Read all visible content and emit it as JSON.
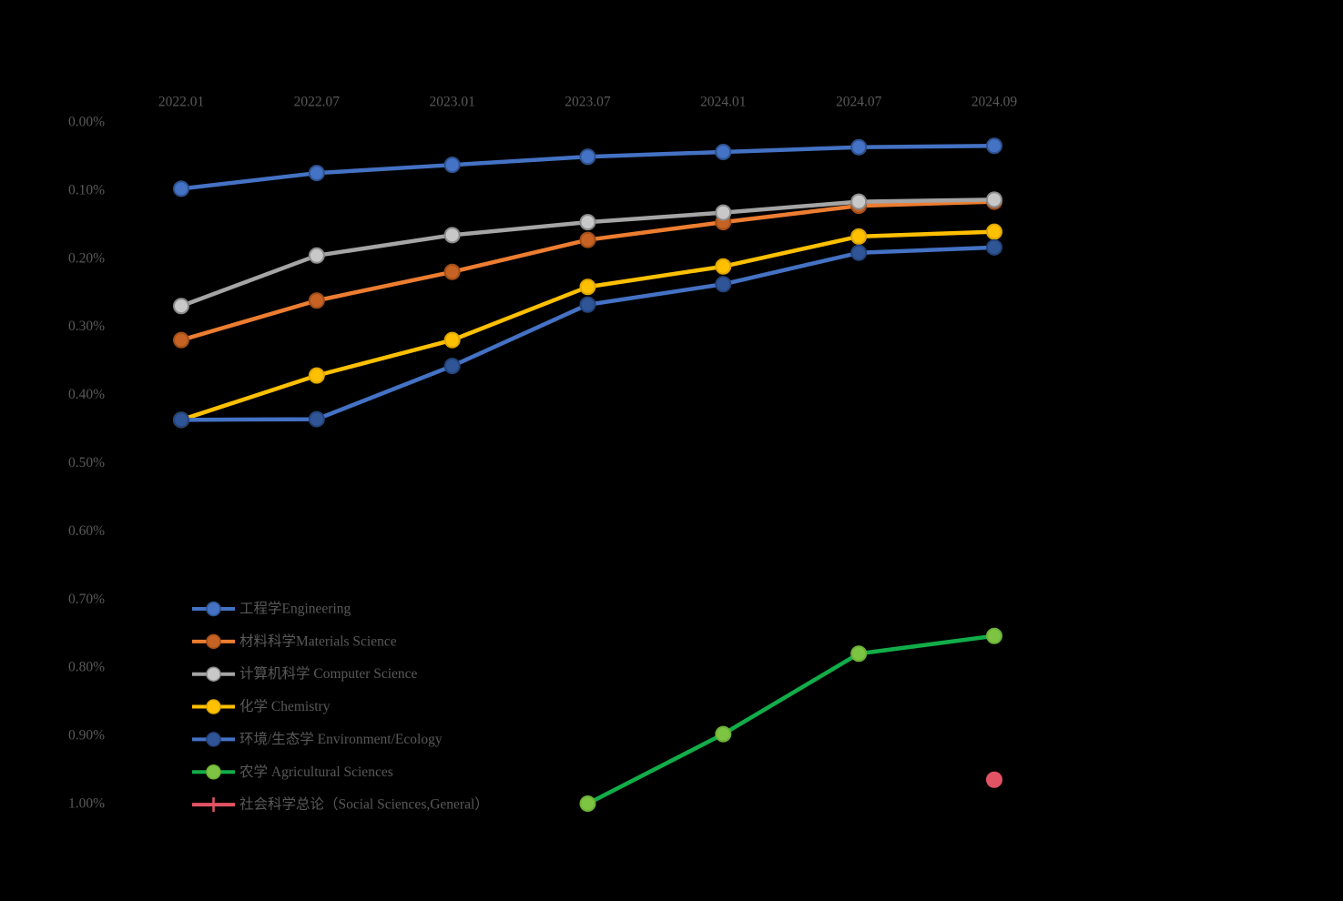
{
  "chart_data": {
    "type": "line",
    "title": "",
    "x_categories": [
      "2022.01",
      "2022.07",
      "2023.01",
      "2023.07",
      "2024.01",
      "2024.07",
      "2024.09"
    ],
    "y_ticks": [
      "0.00%",
      "0.10%",
      "0.20%",
      "0.30%",
      "0.40%",
      "0.50%",
      "0.60%",
      "0.70%",
      "0.80%",
      "0.90%",
      "1.00%"
    ],
    "y_axis": {
      "min_percent": 0.0,
      "max_percent": 1.0,
      "inverted": true,
      "unit": "%"
    },
    "grid": "off",
    "legend_position": "inside-left-bottom",
    "text_color": "#595959",
    "series": [
      {
        "name": "工程学Engineering",
        "color": "#4472C4",
        "marker_fill": "#4472C4",
        "marker_stroke": "#2F528F",
        "legend_marker": "circle",
        "values_percent": [
          0.098,
          0.075,
          0.063,
          0.051,
          0.044,
          0.037,
          0.035
        ]
      },
      {
        "name": "材料科学Materials Science",
        "color": "#ED7D31",
        "marker_fill": "#C66223",
        "marker_stroke": "#A04E18",
        "legend_marker": "circle",
        "values_percent": [
          0.32,
          0.262,
          0.22,
          0.173,
          0.147,
          0.123,
          0.117
        ]
      },
      {
        "name": "计算机科学 Computer Science",
        "color": "#A5A5A5",
        "marker_fill": "#C8C8C8",
        "marker_stroke": "#8C8C8C",
        "legend_marker": "circle",
        "values_percent": [
          0.27,
          0.196,
          0.166,
          0.147,
          0.133,
          0.117,
          0.114
        ]
      },
      {
        "name": "化学 Chemistry",
        "color": "#FFC000",
        "marker_fill": "#FFC000",
        "marker_stroke": "#DFA700",
        "legend_marker": "circle",
        "values_percent": [
          0.437,
          0.372,
          0.32,
          0.242,
          0.212,
          0.168,
          0.161
        ]
      },
      {
        "name": "环境/生态学 Environment/Ecology",
        "color": "#4472C4",
        "marker_fill": "#2F5597",
        "marker_stroke": "#24437A",
        "legend_marker": "circle",
        "values_percent": [
          0.437,
          0.436,
          0.358,
          0.268,
          0.238,
          0.192,
          0.184
        ]
      },
      {
        "name": "农学 Agricultural Sciences",
        "color": "#12AD49",
        "marker_fill": "#7DC442",
        "marker_stroke": "#6DB236",
        "legend_marker": "circle",
        "values_percent": [
          null,
          null,
          null,
          1.0,
          0.898,
          0.78,
          0.754
        ]
      },
      {
        "name": "社会科学总论（Social Sciences,General）",
        "color": "#E25364",
        "marker_fill": "#E25364",
        "marker_stroke": "#E25364",
        "legend_marker": "plus",
        "values_percent": [
          null,
          null,
          null,
          null,
          null,
          null,
          0.965
        ]
      }
    ]
  }
}
